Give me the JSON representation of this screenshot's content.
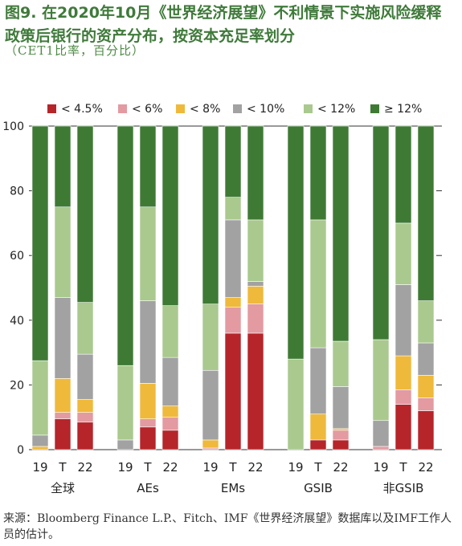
{
  "title": "图9. 在2020年10月《世界经济展望》不利情景下实施风险缓释政策后银行的资产分布，按资本充足率划分",
  "subtitle": "（CET1比率，百分比）",
  "source": "来源：Bloomberg Finance L.P.、Fitch、IMF《世界经济展望》数据库以及IMF工作人员的估计。",
  "colors": {
    "lt4_5": "#b5252a",
    "lt6": "#e39aa0",
    "lt8": "#efb93b",
    "lt10": "#a2a2a2",
    "lt12": "#a9c98e",
    "ge12": "#3f7a35",
    "title": "#3f7a3a"
  },
  "chart_data": {
    "type": "bar",
    "stacked": true,
    "ylim": [
      0,
      100
    ],
    "yticks": [
      0,
      20,
      40,
      60,
      80,
      100
    ],
    "legend_position": "top",
    "legend": [
      "< 4.5%",
      "< 6%",
      "< 8%",
      "< 10%",
      "< 12%",
      "≥ 12%"
    ],
    "groups": [
      {
        "label": "全球",
        "bars": [
          {
            "label": "19",
            "values": [
              0,
              0,
              1,
              3.5,
              23,
              72.5
            ]
          },
          {
            "label": "T",
            "values": [
              9.5,
              2,
              10.5,
              25,
              28,
              25
            ]
          },
          {
            "label": "22",
            "values": [
              8.5,
              3,
              4,
              14,
              16,
              54.5
            ]
          }
        ]
      },
      {
        "label": "AEs",
        "bars": [
          {
            "label": "19",
            "values": [
              0,
              0,
              0,
              3,
              23,
              74
            ]
          },
          {
            "label": "T",
            "values": [
              7,
              2.5,
              11,
              25.5,
              29,
              25
            ]
          },
          {
            "label": "22",
            "values": [
              6,
              4,
              3.5,
              15,
              16,
              55.5
            ]
          }
        ]
      },
      {
        "label": "EMs",
        "bars": [
          {
            "label": "19",
            "values": [
              0,
              0.5,
              2.5,
              21.5,
              20.5,
              55
            ]
          },
          {
            "label": "T",
            "values": [
              36,
              8,
              3,
              24,
              7,
              22
            ]
          },
          {
            "label": "22",
            "values": [
              36,
              9,
              5.5,
              1.5,
              19,
              29
            ]
          }
        ]
      },
      {
        "label": "GSIB",
        "bars": [
          {
            "label": "19",
            "values": [
              0,
              0,
              0,
              0,
              28,
              72
            ]
          },
          {
            "label": "T",
            "values": [
              3,
              0,
              8,
              20.5,
              39.5,
              29
            ]
          },
          {
            "label": "22",
            "values": [
              3,
              3,
              0.5,
              13,
              14,
              66.5
            ]
          }
        ]
      },
      {
        "label": "非GSIB",
        "bars": [
          {
            "label": "19",
            "values": [
              0,
              1,
              0,
              8,
              25,
              66
            ]
          },
          {
            "label": "T",
            "values": [
              14,
              4.5,
              10.5,
              22,
              19,
              30
            ]
          },
          {
            "label": "22",
            "values": [
              12,
              4,
              7,
              10,
              13,
              54
            ]
          }
        ]
      }
    ]
  }
}
